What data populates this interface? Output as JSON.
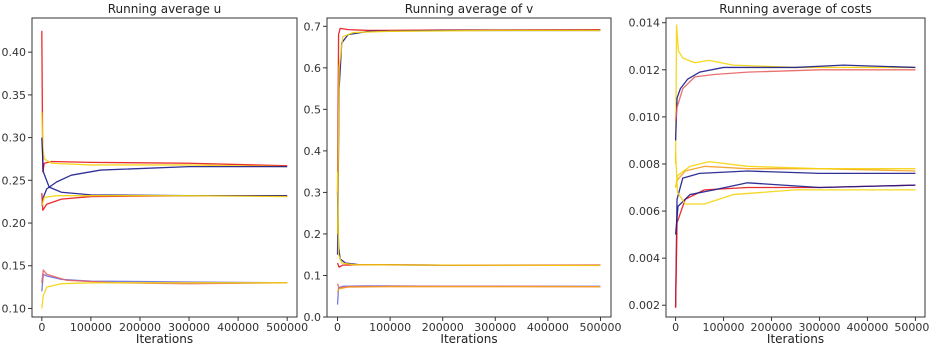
{
  "chart_data": [
    {
      "type": "line",
      "title": "Running average u",
      "xlabel": "Iterations",
      "ylabel": "",
      "xlim": [
        -20000,
        520000
      ],
      "ylim": [
        0.09,
        0.44
      ],
      "xticks": [
        0,
        100000,
        200000,
        300000,
        400000,
        500000
      ],
      "yticks": [
        0.1,
        0.15,
        0.2,
        0.25,
        0.3,
        0.35,
        0.4
      ],
      "ytick_labels": [
        "0.10",
        "0.15",
        "0.20",
        "0.25",
        "0.30",
        "0.35",
        "0.40"
      ],
      "grid": false,
      "series": [
        {
          "color": "#e8141a",
          "values": [
            [
              0,
              0.425
            ],
            [
              2000,
              0.26
            ],
            [
              5000,
              0.27
            ],
            [
              20000,
              0.272
            ],
            [
              100000,
              0.271
            ],
            [
              300000,
              0.27
            ],
            [
              500000,
              0.267
            ]
          ]
        },
        {
          "color": "#f5d40a",
          "values": [
            [
              0,
              0.33
            ],
            [
              2000,
              0.29
            ],
            [
              5000,
              0.275
            ],
            [
              20000,
              0.27
            ],
            [
              100000,
              0.268
            ],
            [
              300000,
              0.268
            ],
            [
              500000,
              0.266
            ]
          ]
        },
        {
          "color": "#1a1a8c",
          "values": [
            [
              0,
              0.22
            ],
            [
              3000,
              0.23
            ],
            [
              10000,
              0.24
            ],
            [
              30000,
              0.248
            ],
            [
              60000,
              0.256
            ],
            [
              120000,
              0.262
            ],
            [
              300000,
              0.266
            ],
            [
              500000,
              0.266
            ]
          ]
        },
        {
          "color": "#e8141a",
          "values": [
            [
              0,
              0.235
            ],
            [
              2000,
              0.215
            ],
            [
              10000,
              0.222
            ],
            [
              40000,
              0.228
            ],
            [
              100000,
              0.231
            ],
            [
              300000,
              0.232
            ],
            [
              500000,
              0.232
            ]
          ]
        },
        {
          "color": "#1a1a8c",
          "values": [
            [
              0,
              0.3
            ],
            [
              3000,
              0.26
            ],
            [
              15000,
              0.242
            ],
            [
              40000,
              0.236
            ],
            [
              100000,
              0.233
            ],
            [
              300000,
              0.232
            ],
            [
              500000,
              0.232
            ]
          ]
        },
        {
          "color": "#f5d40a",
          "values": [
            [
              0,
              0.22
            ],
            [
              5000,
              0.23
            ],
            [
              30000,
              0.232
            ],
            [
              100000,
              0.232
            ],
            [
              300000,
              0.232
            ],
            [
              500000,
              0.231
            ]
          ]
        },
        {
          "color": "#6a6ae0",
          "values": [
            [
              0,
              0.12
            ],
            [
              3000,
              0.14
            ],
            [
              10000,
              0.138
            ],
            [
              40000,
              0.134
            ],
            [
              100000,
              0.132
            ],
            [
              300000,
              0.131
            ],
            [
              500000,
              0.13
            ]
          ]
        },
        {
          "color": "#e86060",
          "values": [
            [
              0,
              0.13
            ],
            [
              3000,
              0.145
            ],
            [
              10000,
              0.14
            ],
            [
              50000,
              0.133
            ],
            [
              150000,
              0.13
            ],
            [
              300000,
              0.129
            ],
            [
              500000,
              0.13
            ]
          ]
        },
        {
          "color": "#f5d40a",
          "values": [
            [
              0,
              0.1
            ],
            [
              3000,
              0.115
            ],
            [
              10000,
              0.125
            ],
            [
              40000,
              0.129
            ],
            [
              100000,
              0.13
            ],
            [
              300000,
              0.13
            ],
            [
              500000,
              0.13
            ]
          ]
        }
      ]
    },
    {
      "type": "line",
      "title": "Running average of v",
      "xlabel": "Iterations",
      "ylabel": "",
      "xlim": [
        -20000,
        520000
      ],
      "ylim": [
        0.0,
        0.72
      ],
      "xticks": [
        0,
        100000,
        200000,
        300000,
        400000,
        500000
      ],
      "yticks": [
        0.0,
        0.1,
        0.2,
        0.3,
        0.4,
        0.5,
        0.6,
        0.7
      ],
      "ytick_labels": [
        "0.0",
        "0.1",
        "0.2",
        "0.3",
        "0.4",
        "0.5",
        "0.6",
        "0.7"
      ],
      "grid": false,
      "series": [
        {
          "color": "#e8141a",
          "values": [
            [
              0,
              0.3
            ],
            [
              2000,
              0.68
            ],
            [
              5000,
              0.695
            ],
            [
              20000,
              0.692
            ],
            [
              60000,
              0.69
            ],
            [
              200000,
              0.691
            ],
            [
              500000,
              0.692
            ]
          ]
        },
        {
          "color": "#1a1a8c",
          "values": [
            [
              0,
              0.15
            ],
            [
              3000,
              0.55
            ],
            [
              8000,
              0.66
            ],
            [
              20000,
              0.68
            ],
            [
              60000,
              0.688
            ],
            [
              200000,
              0.69
            ],
            [
              500000,
              0.69
            ]
          ]
        },
        {
          "color": "#f5d40a",
          "values": [
            [
              0,
              0.2
            ],
            [
              3000,
              0.6
            ],
            [
              10000,
              0.675
            ],
            [
              30000,
              0.685
            ],
            [
              100000,
              0.688
            ],
            [
              300000,
              0.69
            ],
            [
              500000,
              0.69
            ]
          ]
        },
        {
          "color": "#1a1a8c",
          "values": [
            [
              0,
              0.3
            ],
            [
              2000,
              0.17
            ],
            [
              5000,
              0.14
            ],
            [
              15000,
              0.13
            ],
            [
              40000,
              0.126
            ],
            [
              200000,
              0.125
            ],
            [
              500000,
              0.125
            ]
          ]
        },
        {
          "color": "#e8141a",
          "values": [
            [
              0,
              0.13
            ],
            [
              3000,
              0.12
            ],
            [
              10000,
              0.125
            ],
            [
              50000,
              0.126
            ],
            [
              200000,
              0.125
            ],
            [
              500000,
              0.125
            ]
          ]
        },
        {
          "color": "#f5d40a",
          "values": [
            [
              0,
              0.35
            ],
            [
              2000,
              0.15
            ],
            [
              8000,
              0.13
            ],
            [
              30000,
              0.126
            ],
            [
              200000,
              0.125
            ],
            [
              500000,
              0.124
            ]
          ]
        },
        {
          "color": "#6a6ae0",
          "values": [
            [
              0,
              0.03
            ],
            [
              2000,
              0.07
            ],
            [
              10000,
              0.074
            ],
            [
              50000,
              0.075
            ],
            [
              200000,
              0.074
            ],
            [
              500000,
              0.074
            ]
          ]
        },
        {
          "color": "#e86060",
          "values": [
            [
              0,
              0.08
            ],
            [
              3000,
              0.07
            ],
            [
              20000,
              0.073
            ],
            [
              100000,
              0.074
            ],
            [
              300000,
              0.074
            ],
            [
              500000,
              0.073
            ]
          ]
        },
        {
          "color": "#f5a020",
          "values": [
            [
              0,
              0.06
            ],
            [
              3000,
              0.068
            ],
            [
              20000,
              0.072
            ],
            [
              100000,
              0.073
            ],
            [
              300000,
              0.073
            ],
            [
              500000,
              0.073
            ]
          ]
        }
      ]
    },
    {
      "type": "line",
      "title": "Running average of costs",
      "xlabel": "Iterations",
      "ylabel": "",
      "xlim": [
        -20000,
        520000
      ],
      "ylim": [
        0.0015,
        0.0142
      ],
      "xticks": [
        0,
        100000,
        200000,
        300000,
        400000,
        500000
      ],
      "yticks": [
        0.002,
        0.004,
        0.006,
        0.008,
        0.01,
        0.012,
        0.014
      ],
      "ytick_labels": [
        "0.002",
        "0.004",
        "0.006",
        "0.008",
        "0.010",
        "0.012",
        "0.014"
      ],
      "grid": false,
      "series": [
        {
          "color": "#f5d40a",
          "values": [
            [
              0,
              0.008
            ],
            [
              2000,
              0.0139
            ],
            [
              6000,
              0.0128
            ],
            [
              15000,
              0.0125
            ],
            [
              40000,
              0.0123
            ],
            [
              70000,
              0.0124
            ],
            [
              120000,
              0.0122
            ],
            [
              250000,
              0.0121
            ],
            [
              400000,
              0.0121
            ],
            [
              500000,
              0.0121
            ]
          ]
        },
        {
          "color": "#1a1a8c",
          "values": [
            [
              0,
              0.009
            ],
            [
              3000,
              0.0108
            ],
            [
              10000,
              0.0112
            ],
            [
              25000,
              0.0116
            ],
            [
              50000,
              0.0119
            ],
            [
              100000,
              0.0121
            ],
            [
              250000,
              0.0121
            ],
            [
              350000,
              0.0122
            ],
            [
              500000,
              0.0121
            ]
          ]
        },
        {
          "color": "#e86060",
          "values": [
            [
              0,
              0.0098
            ],
            [
              3000,
              0.0104
            ],
            [
              15000,
              0.0112
            ],
            [
              40000,
              0.0117
            ],
            [
              80000,
              0.0118
            ],
            [
              150000,
              0.0119
            ],
            [
              300000,
              0.012
            ],
            [
              500000,
              0.012
            ]
          ]
        },
        {
          "color": "#f5a020",
          "values": [
            [
              0,
              0.007
            ],
            [
              3000,
              0.0073
            ],
            [
              20000,
              0.0077
            ],
            [
              60000,
              0.0079
            ],
            [
              150000,
              0.0078
            ],
            [
              300000,
              0.0078
            ],
            [
              500000,
              0.0077
            ]
          ]
        },
        {
          "color": "#f5d40a",
          "values": [
            [
              0,
              0.007
            ],
            [
              4000,
              0.0075
            ],
            [
              30000,
              0.0079
            ],
            [
              70000,
              0.0081
            ],
            [
              150000,
              0.0079
            ],
            [
              300000,
              0.0078
            ],
            [
              500000,
              0.0078
            ]
          ]
        },
        {
          "color": "#1a1a8c",
          "values": [
            [
              0,
              0.0019
            ],
            [
              3000,
              0.0065
            ],
            [
              15000,
              0.0074
            ],
            [
              50000,
              0.0076
            ],
            [
              150000,
              0.0077
            ],
            [
              300000,
              0.0076
            ],
            [
              500000,
              0.0076
            ]
          ]
        },
        {
          "color": "#e8141a",
          "values": [
            [
              0,
              0.0019
            ],
            [
              3000,
              0.0055
            ],
            [
              20000,
              0.0065
            ],
            [
              60000,
              0.0069
            ],
            [
              150000,
              0.007
            ],
            [
              300000,
              0.007
            ],
            [
              500000,
              0.0071
            ]
          ]
        },
        {
          "color": "#1a1a8c",
          "values": [
            [
              0,
              0.005
            ],
            [
              5000,
              0.0062
            ],
            [
              30000,
              0.0067
            ],
            [
              80000,
              0.0069
            ],
            [
              150000,
              0.0072
            ],
            [
              300000,
              0.007
            ],
            [
              500000,
              0.0071
            ]
          ]
        },
        {
          "color": "#f5d40a",
          "values": [
            [
              0,
              0.0085
            ],
            [
              4000,
              0.0068
            ],
            [
              20000,
              0.0063
            ],
            [
              60000,
              0.0063
            ],
            [
              120000,
              0.0067
            ],
            [
              250000,
              0.0069
            ],
            [
              400000,
              0.0069
            ],
            [
              500000,
              0.0069
            ]
          ]
        }
      ]
    }
  ]
}
